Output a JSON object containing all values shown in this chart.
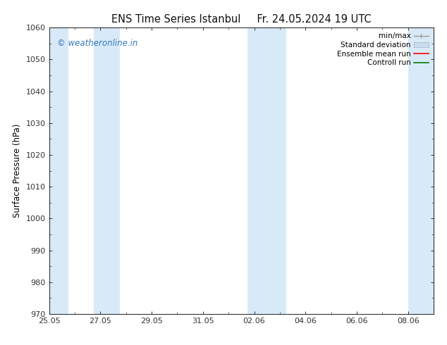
{
  "title_left": "ENS Time Series Istanbul",
  "title_right": "Fr. 24.05.2024 19 UTC",
  "ylabel": "Surface Pressure (hPa)",
  "ylim": [
    970,
    1060
  ],
  "yticks": [
    970,
    980,
    990,
    1000,
    1010,
    1020,
    1030,
    1040,
    1050,
    1060
  ],
  "xlim": [
    0,
    15
  ],
  "xtick_labels": [
    "25.05",
    "27.05",
    "29.05",
    "31.05",
    "02.06",
    "04.06",
    "06.06",
    "08.06"
  ],
  "xtick_positions": [
    0,
    2,
    4,
    6,
    8,
    10,
    12,
    14
  ],
  "bg_color": "#ffffff",
  "plot_bg_color": "#ffffff",
  "shaded_bands_color": "#d8eaf8",
  "shaded_bands": [
    {
      "x_start": 0.0,
      "x_end": 0.75
    },
    {
      "x_start": 1.75,
      "x_end": 2.75
    },
    {
      "x_start": 7.75,
      "x_end": 8.5
    },
    {
      "x_start": 8.5,
      "x_end": 9.25
    },
    {
      "x_start": 14.0,
      "x_end": 15.0
    }
  ],
  "watermark_text": "© weatheronline.in",
  "watermark_color": "#3377bb",
  "legend_items": [
    {
      "label": "min/max",
      "color": "#aaaaaa",
      "type": "errorbar"
    },
    {
      "label": "Standard deviation",
      "color": "#c8ddf0",
      "type": "box"
    },
    {
      "label": "Ensemble mean run",
      "color": "#ff0000",
      "type": "line"
    },
    {
      "label": "Controll run",
      "color": "#007700",
      "type": "line"
    }
  ],
  "title_fontsize": 10.5,
  "axis_fontsize": 8.5,
  "tick_fontsize": 8,
  "watermark_fontsize": 8.5,
  "legend_fontsize": 7.5
}
